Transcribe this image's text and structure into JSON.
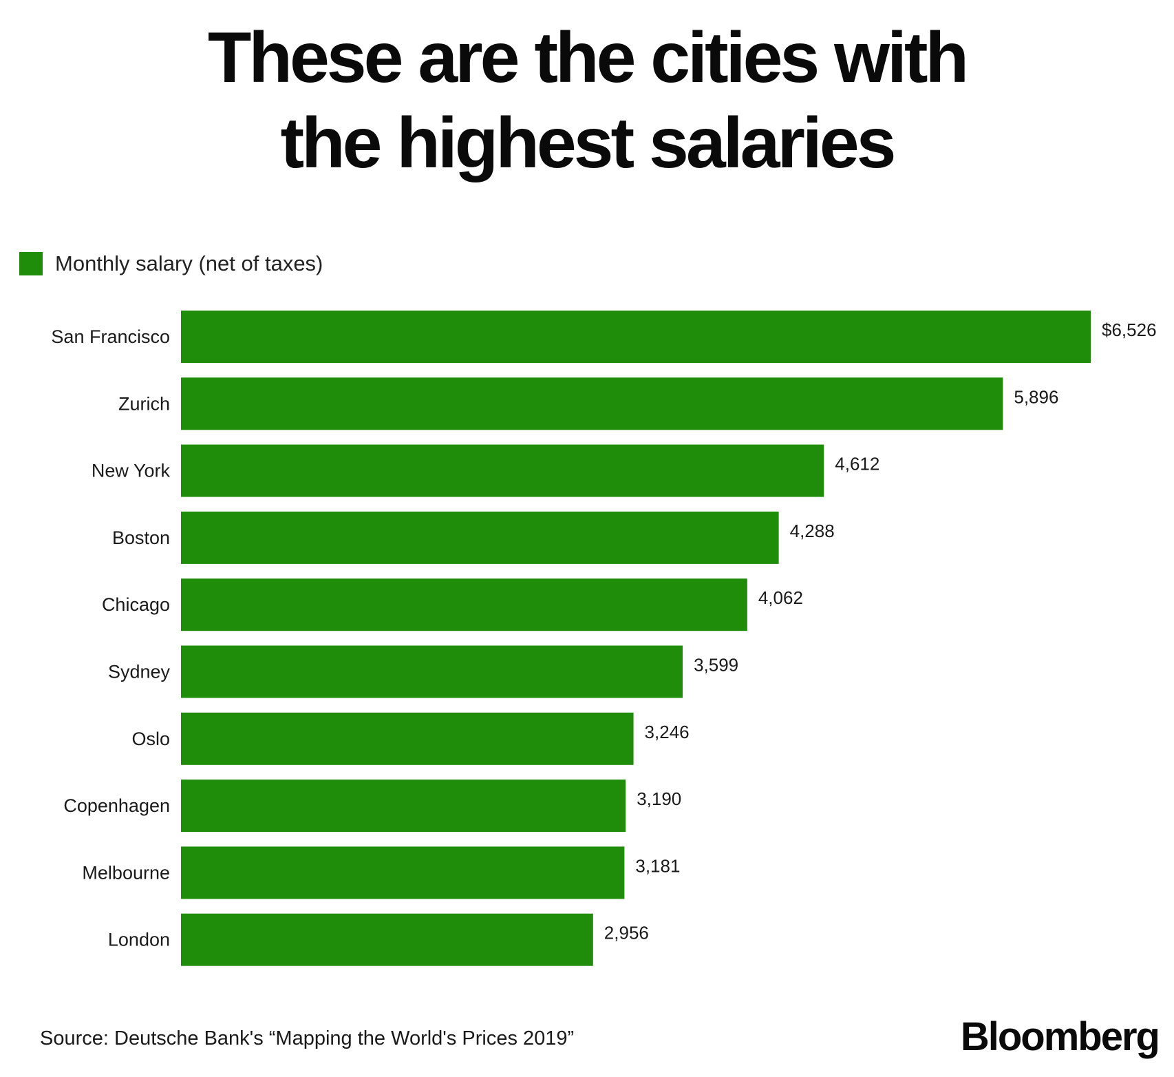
{
  "title_lines": [
    "These are the cities with",
    "the highest salaries"
  ],
  "legend": {
    "label": "Monthly salary (net of taxes)",
    "color": "#1f8c0a"
  },
  "source": "Source: Deutsche Bank's “Mapping the World's Prices 2019”",
  "brand": "Bloomberg",
  "chart_data": {
    "type": "bar",
    "orientation": "horizontal",
    "title": "These are the cities with the highest salaries",
    "categories": [
      "San Francisco",
      "Zurich",
      "New York",
      "Boston",
      "Chicago",
      "Sydney",
      "Oslo",
      "Copenhagen",
      "Melbourne",
      "London"
    ],
    "series": [
      {
        "name": "Monthly salary (net of taxes)",
        "color": "#1f8c0a",
        "values": [
          6526,
          5896,
          4612,
          4288,
          4062,
          3599,
          3246,
          3190,
          3181,
          2956
        ]
      }
    ],
    "value_labels": [
      "$6,526",
      "5,896",
      "4,612",
      "4,288",
      "4,062",
      "3,599",
      "3,246",
      "3,190",
      "3,181",
      "2,956"
    ],
    "xlim": [
      0,
      6526
    ],
    "grid": false,
    "legend_position": "top-left"
  }
}
